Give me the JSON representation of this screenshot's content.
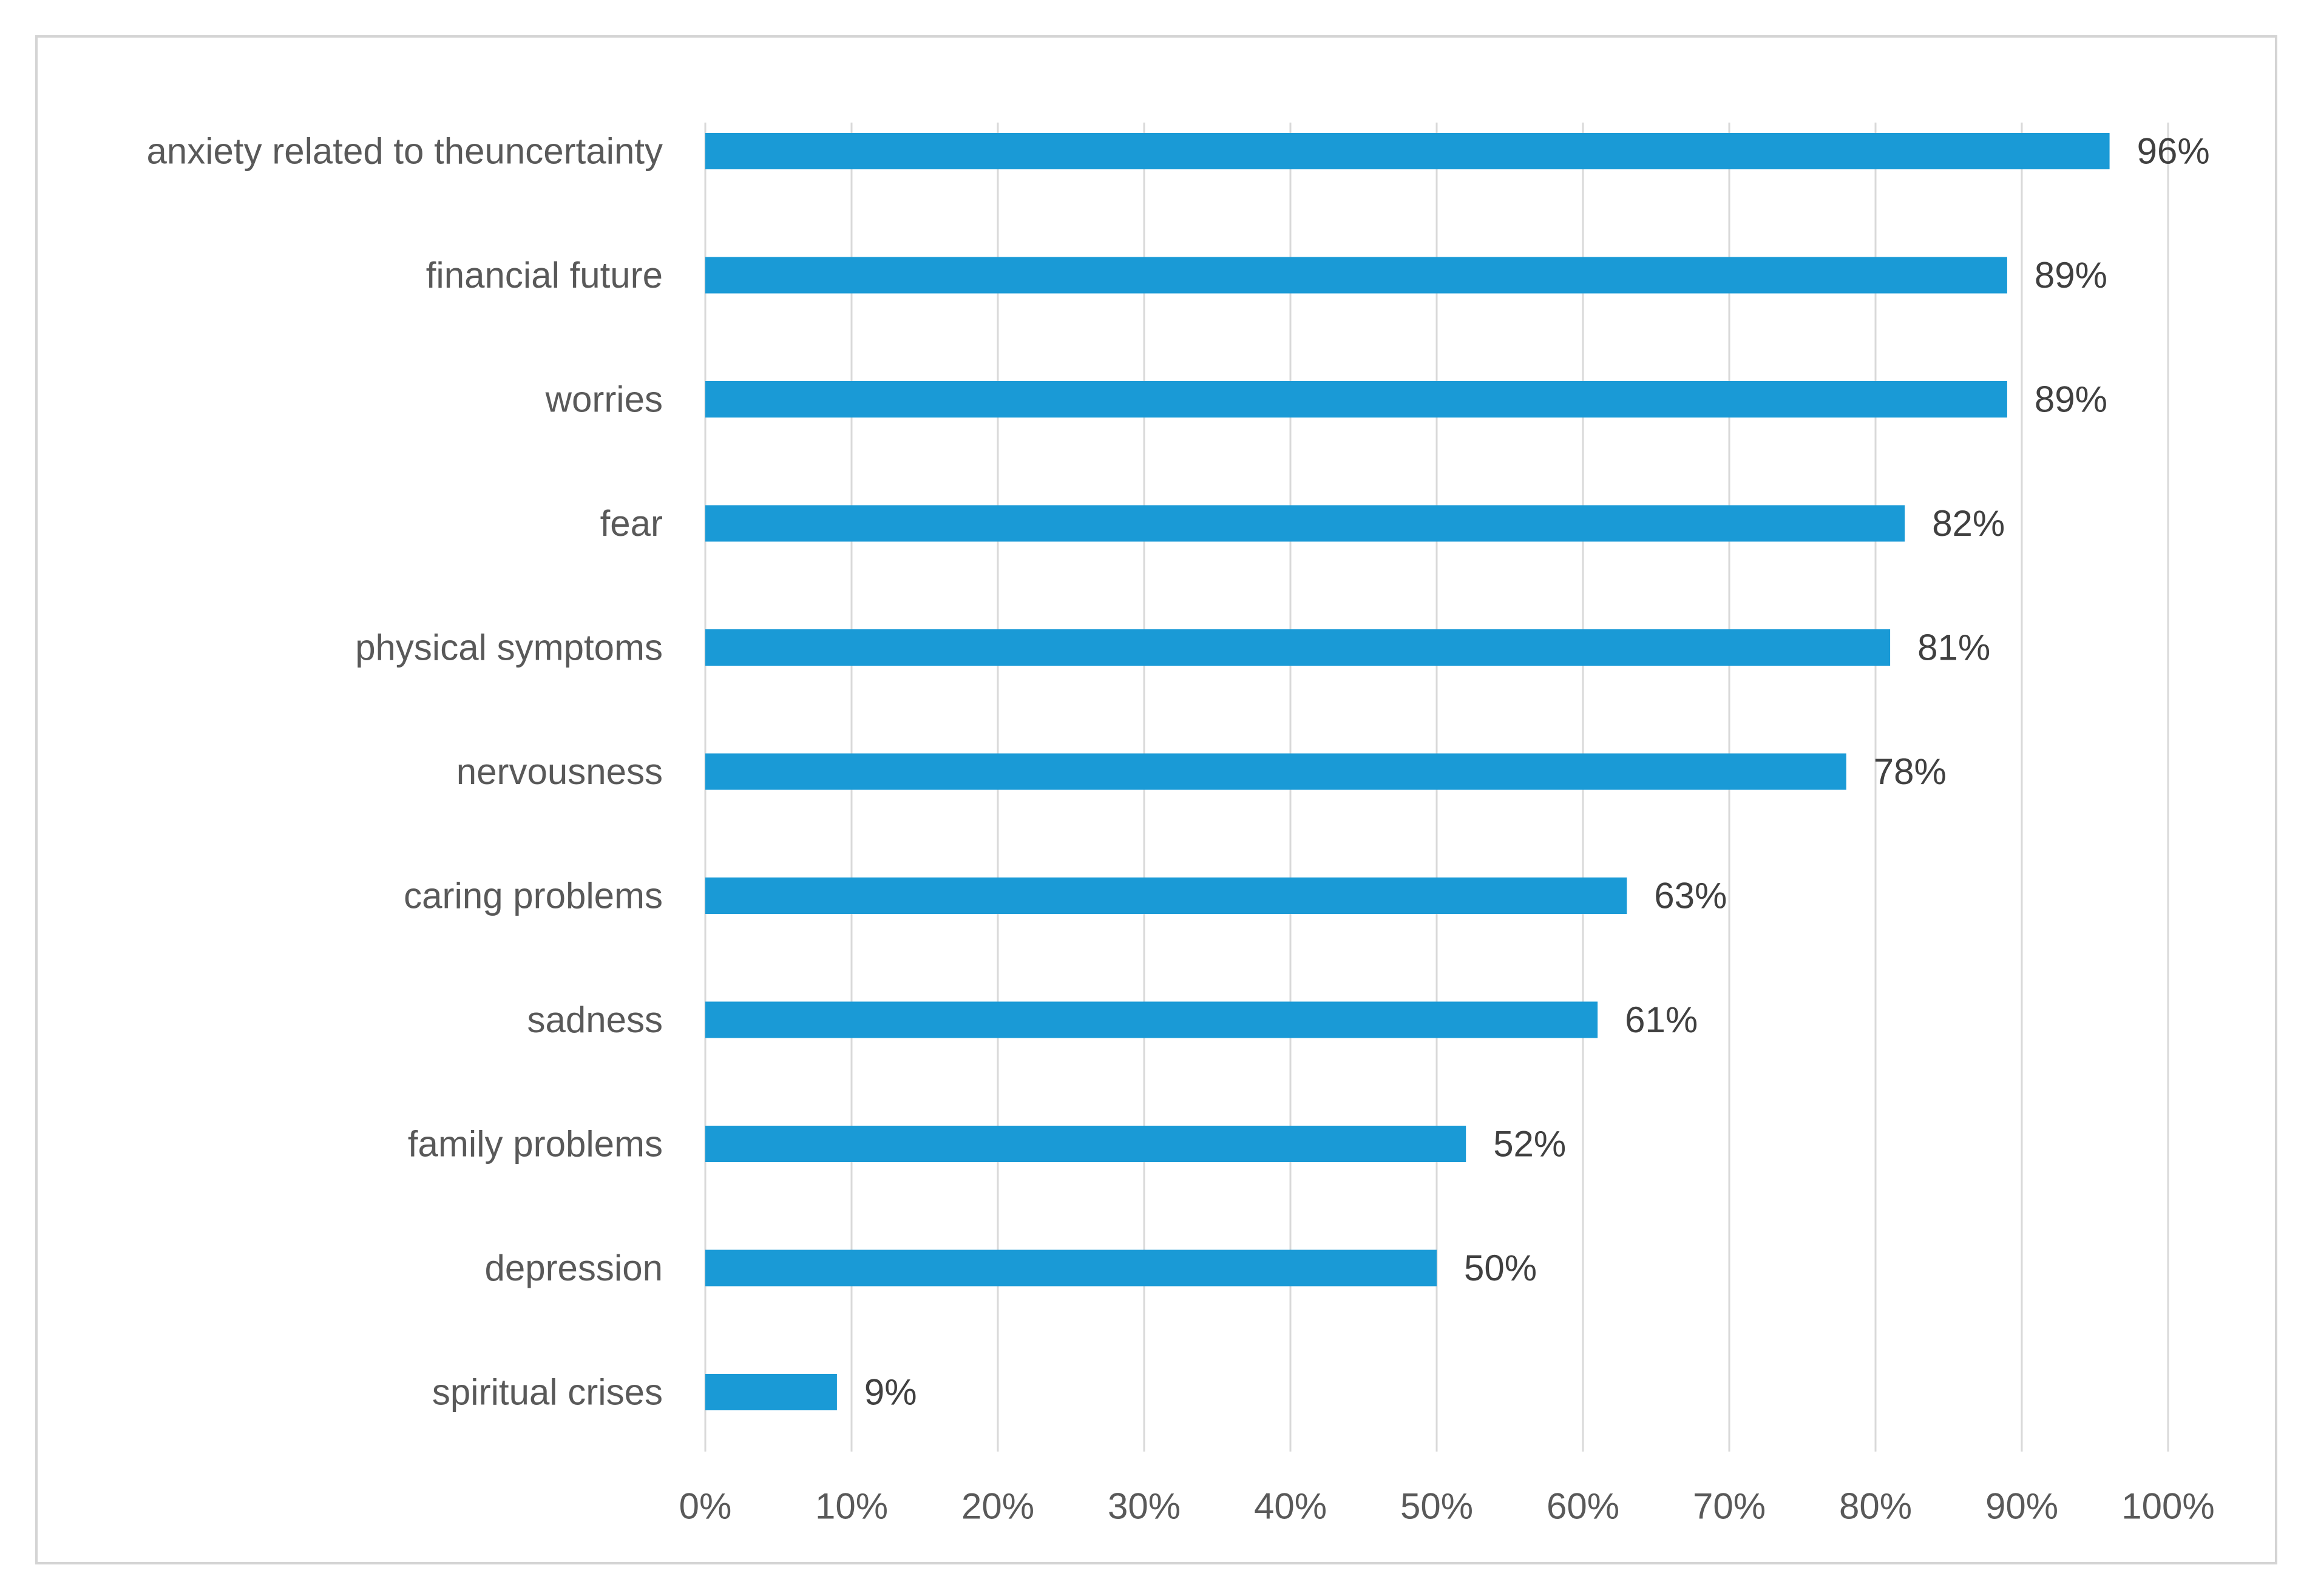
{
  "chart_data": {
    "type": "bar",
    "orientation": "horizontal",
    "title": "",
    "xlabel": "",
    "ylabel": "",
    "categories": [
      "anxiety related to theuncertainty",
      "financial future",
      "worries",
      "fear",
      "physical symptoms",
      "nervousness",
      "caring problems",
      "sadness",
      "family problems",
      "depression",
      "spiritual crises"
    ],
    "values": [
      96,
      89,
      89,
      82,
      81,
      78,
      63,
      61,
      52,
      50,
      9
    ],
    "data_labels": [
      "96%",
      "89%",
      "89%",
      "82%",
      "81%",
      "78%",
      "63%",
      "61%",
      "52%",
      "50%",
      "9%"
    ],
    "xlim": [
      0,
      100
    ],
    "x_ticks": [
      0,
      10,
      20,
      30,
      40,
      50,
      60,
      70,
      80,
      90,
      100
    ],
    "x_tick_labels": [
      "0%",
      "10%",
      "20%",
      "30%",
      "40%",
      "50%",
      "60%",
      "70%",
      "80%",
      "90%",
      "100%"
    ],
    "grid": "vertical",
    "legend": "none",
    "colors": {
      "bar": "#1a9ad6",
      "grid": "#d9d9d9",
      "text": "#595959",
      "border": "#d4d4d4"
    }
  }
}
